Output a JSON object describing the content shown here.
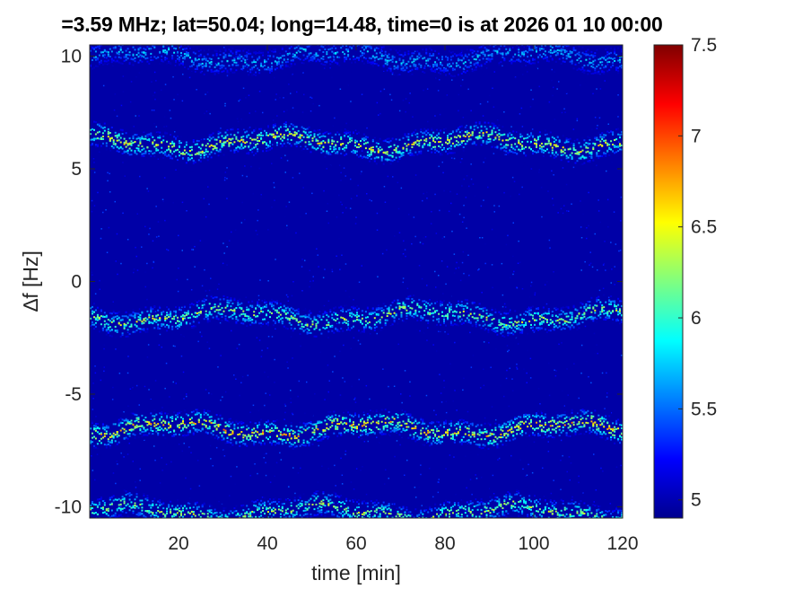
{
  "chart_data": {
    "type": "heatmap",
    "title": "=3.59 MHz;  lat=50.04; long=14.48, time=0 is at 2026 01 10 00:00",
    "xlabel": "time [min]",
    "ylabel": "∆f [Hz]",
    "xlim": [
      0,
      120
    ],
    "ylim": [
      -10.5,
      10.5
    ],
    "x_ticks": [
      20,
      40,
      60,
      80,
      100,
      120
    ],
    "y_ticks": [
      -10,
      -5,
      0,
      5,
      10
    ],
    "colorbar": {
      "colormap": "jet",
      "range": [
        4.9,
        7.5
      ],
      "ticks": [
        5,
        5.5,
        6,
        6.5,
        7,
        7.5
      ]
    },
    "background_level": 5.0,
    "bands": [
      {
        "center_hz": 10.0,
        "intensity": 5.9
      },
      {
        "center_hz": 6.2,
        "intensity": 6.8
      },
      {
        "center_hz": -1.5,
        "intensity": 6.6
      },
      {
        "center_hz": -6.5,
        "intensity": 7.0
      },
      {
        "center_hz": -10.2,
        "intensity": 6.6
      }
    ]
  },
  "colors": {
    "background": "#ffffff",
    "axis": "#262626",
    "text": "#262626",
    "plot_background": "#00008f"
  }
}
